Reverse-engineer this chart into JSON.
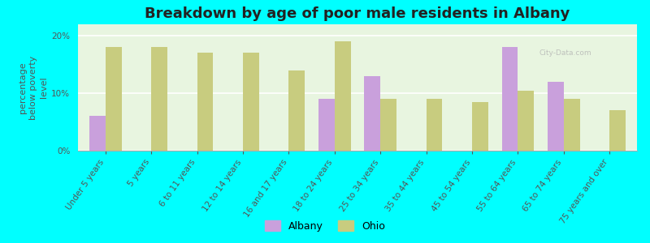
{
  "title": "Breakdown by age of poor male residents in Albany",
  "ylabel": "percentage\nbelow poverty\nlevel",
  "categories": [
    "Under 5 years",
    "5 years",
    "6 to 11 years",
    "12 to 14 years",
    "16 and 17 years",
    "18 to 24 years",
    "25 to 34 years",
    "35 to 44 years",
    "45 to 54 years",
    "55 to 64 years",
    "65 to 74 years",
    "75 years and over"
  ],
  "albany": [
    6.0,
    0,
    0,
    0,
    0,
    9.0,
    13.0,
    0,
    0,
    18.0,
    12.0,
    0
  ],
  "ohio": [
    18.0,
    18.0,
    17.0,
    17.0,
    14.0,
    19.0,
    9.0,
    9.0,
    8.5,
    10.5,
    9.0,
    7.0
  ],
  "albany_color": "#c9a0dc",
  "ohio_color": "#c8cc7f",
  "background_color": "#e8f5e0",
  "outer_bg": "#00ffff",
  "ylim": [
    0,
    22
  ],
  "yticks": [
    0,
    10,
    20
  ],
  "ytick_labels": [
    "0%",
    "10%",
    "20%"
  ],
  "bar_width": 0.35,
  "title_fontsize": 13,
  "axis_label_fontsize": 8,
  "tick_fontsize": 7.5,
  "legend_fontsize": 9
}
